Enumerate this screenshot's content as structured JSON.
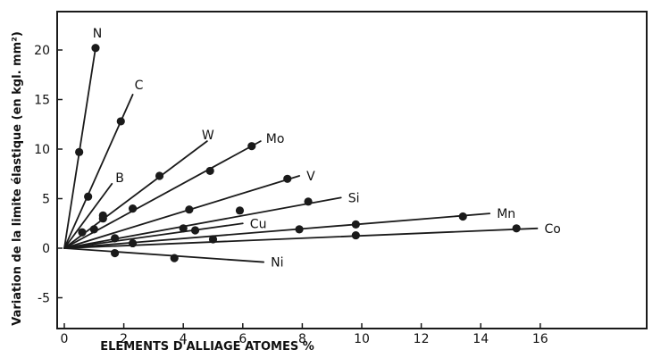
{
  "chart_data": {
    "type": "line",
    "title": "",
    "xlabel": "ELEMENTS D'ALLIAGE ATOMES %",
    "ylabel": "Variation de la limite élastique (en kgl. mm²)",
    "xlim": [
      0,
      20
    ],
    "ylim": [
      -6,
      23
    ],
    "x_ticks": [
      "0",
      "2",
      "4",
      "6",
      "8",
      "10",
      "12",
      "14",
      "16"
    ],
    "x_tick_values": [
      0,
      2,
      4,
      6,
      8,
      10,
      12,
      14,
      16
    ],
    "y_ticks": [
      "-5",
      "0",
      "5",
      "10",
      "15",
      "20"
    ],
    "y_tick_values": [
      -5,
      0,
      5,
      10,
      15,
      20
    ],
    "grid": false,
    "line_color": "#1a1a1a",
    "series": [
      {
        "name": "N",
        "line": [
          [
            0,
            0
          ],
          [
            1.05,
            20.2
          ]
        ],
        "points": [
          [
            0.5,
            9.7
          ],
          [
            1.05,
            20.2
          ]
        ]
      },
      {
        "name": "C",
        "line": [
          [
            0,
            0
          ],
          [
            2.3,
            15.5
          ]
        ],
        "points": [
          [
            0.8,
            5.2
          ],
          [
            1.9,
            12.8
          ]
        ]
      },
      {
        "name": "B",
        "line": [
          [
            0,
            0
          ],
          [
            1.6,
            6.5
          ]
        ],
        "points": [
          [
            0.6,
            1.6
          ],
          [
            1.3,
            3.3
          ]
        ]
      },
      {
        "name": "W",
        "line": [
          [
            0,
            0
          ],
          [
            4.8,
            10.8
          ]
        ],
        "points": [
          [
            1.3,
            3.0
          ],
          [
            2.3,
            4.0
          ],
          [
            3.2,
            7.3
          ]
        ]
      },
      {
        "name": "Mo",
        "line": [
          [
            0,
            0
          ],
          [
            6.6,
            10.8
          ]
        ],
        "points": [
          [
            1.0,
            1.9
          ],
          [
            4.9,
            7.8
          ],
          [
            6.3,
            10.3
          ]
        ]
      },
      {
        "name": "V",
        "line": [
          [
            0,
            0
          ],
          [
            7.9,
            7.3
          ]
        ],
        "points": [
          [
            4.2,
            3.9
          ],
          [
            7.5,
            7.0
          ]
        ]
      },
      {
        "name": "Si",
        "line": [
          [
            0,
            0
          ],
          [
            9.3,
            5.1
          ]
        ],
        "points": [
          [
            1.7,
            1.0
          ],
          [
            5.9,
            3.8
          ],
          [
            8.2,
            4.7
          ]
        ]
      },
      {
        "name": "Cu",
        "line": [
          [
            0,
            0
          ],
          [
            6.0,
            2.5
          ]
        ],
        "points": [
          [
            4.0,
            2.0
          ],
          [
            4.4,
            1.8
          ]
        ]
      },
      {
        "name": "Mn",
        "line": [
          [
            0,
            0
          ],
          [
            14.3,
            3.5
          ]
        ],
        "points": [
          [
            7.9,
            1.9
          ],
          [
            9.8,
            2.4
          ],
          [
            13.4,
            3.2
          ]
        ]
      },
      {
        "name": "Co",
        "line": [
          [
            0,
            0
          ],
          [
            15.9,
            2.0
          ]
        ],
        "points": [
          [
            2.3,
            0.5
          ],
          [
            5.0,
            0.9
          ],
          [
            9.8,
            1.3
          ],
          [
            15.2,
            2.0
          ]
        ]
      },
      {
        "name": "Ni",
        "line": [
          [
            0,
            0
          ],
          [
            6.7,
            -1.4
          ]
        ],
        "points": [
          [
            1.7,
            -0.5
          ],
          [
            3.7,
            -1.0
          ]
        ]
      }
    ]
  }
}
